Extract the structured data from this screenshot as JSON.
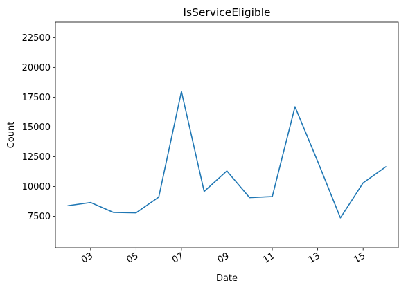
{
  "chart_data": {
    "type": "line",
    "title": "IsServiceEligible",
    "xlabel": "Date",
    "ylabel": "Count",
    "x": [
      "02",
      "03",
      "04",
      "05",
      "06",
      "07",
      "08",
      "09",
      "10",
      "11",
      "12",
      "13",
      "14",
      "15",
      "16"
    ],
    "series": [
      {
        "color": "#1f77b4",
        "values": [
          8380,
          8650,
          7820,
          7780,
          9100,
          17980,
          9580,
          11300,
          9060,
          9150,
          16700,
          12100,
          7360,
          10300,
          11650
        ]
      }
    ],
    "xticks": [
      "03",
      "05",
      "07",
      "09",
      "11",
      "13",
      "15"
    ],
    "yticks": [
      "7500",
      "10000",
      "12500",
      "15000",
      "17500",
      "20000",
      "22500"
    ],
    "xlim": [
      1.45,
      16.55
    ],
    "ylim": [
      4850,
      23800
    ],
    "grid": false,
    "legend": false
  }
}
